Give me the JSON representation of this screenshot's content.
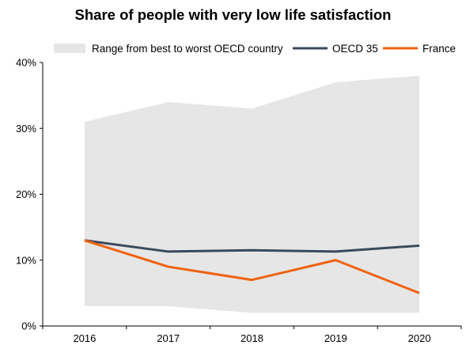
{
  "chart_data": {
    "type": "line",
    "title": "Share of people with very low life satisfaction",
    "xlabel": "",
    "ylabel": "",
    "categories": [
      "2016",
      "2017",
      "2018",
      "2019",
      "2020"
    ],
    "yticks": [
      "0%",
      "10%",
      "20%",
      "30%",
      "40%"
    ],
    "ylim": [
      0,
      40
    ],
    "grid": false,
    "legend_position": "top",
    "range_band": {
      "name": "Range from best to worst OECD country",
      "upper": [
        31,
        34,
        33,
        37,
        38
      ],
      "lower": [
        3,
        3,
        2,
        2,
        2
      ],
      "color": "#e6e6e6"
    },
    "series": [
      {
        "name": "OECD 35",
        "values": [
          13,
          11.3,
          11.5,
          11.3,
          12.2
        ],
        "color": "#3a4a5c"
      },
      {
        "name": "France",
        "values": [
          13,
          9,
          7,
          10,
          5
        ],
        "color": "#f0620f"
      }
    ]
  }
}
